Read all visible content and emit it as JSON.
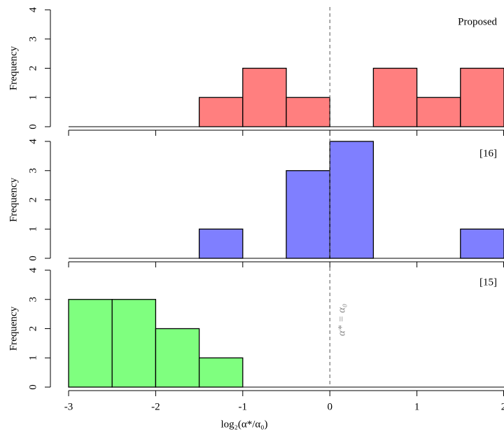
{
  "chart_data": [
    {
      "type": "histogram",
      "label": "Proposed",
      "y_label": "Frequency",
      "color": "#ff7f7f",
      "bins": [
        -3,
        -2.5,
        -2,
        -1.5,
        -1,
        -0.5,
        0,
        0.5,
        1,
        1.5,
        2
      ],
      "values": [
        0,
        0,
        0,
        1,
        2,
        1,
        0,
        2,
        1,
        2
      ],
      "ylim": [
        0,
        4
      ],
      "yticks": [
        0,
        1,
        2,
        3,
        4
      ],
      "vline": 0
    },
    {
      "type": "histogram",
      "label": "[16]",
      "y_label": "Frequency",
      "color": "#7f7fff",
      "bins": [
        -3,
        -2.5,
        -2,
        -1.5,
        -1,
        -0.5,
        0,
        0.5,
        1,
        1.5,
        2
      ],
      "values": [
        0,
        0,
        0,
        1,
        0,
        3,
        4,
        0,
        0,
        1
      ],
      "ylim": [
        0,
        4
      ],
      "yticks": [
        0,
        1,
        2,
        3,
        4
      ],
      "vline": 0
    },
    {
      "type": "histogram",
      "label": "[15]",
      "y_label": "Frequency",
      "color": "#7fff7f",
      "bins": [
        -3,
        -2.5,
        -2,
        -1.5,
        -1,
        -0.5,
        0,
        0.5,
        1,
        1.5,
        2
      ],
      "values": [
        3,
        3,
        2,
        1,
        0,
        0,
        0,
        0,
        0,
        0
      ],
      "ylim": [
        0,
        4
      ],
      "yticks": [
        0,
        1,
        2,
        3,
        4
      ],
      "vline": 0,
      "annotation": "α* = α₀",
      "x_label": "log₂(α*/α₀)",
      "xlim": [
        -3,
        2
      ],
      "xticks": [
        -3,
        -2,
        -1,
        0,
        1,
        2
      ]
    }
  ]
}
